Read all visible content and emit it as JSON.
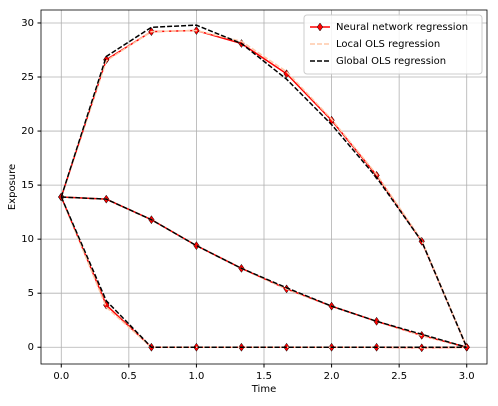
{
  "chart_data": {
    "type": "line",
    "xlabel": "Time",
    "ylabel": "Exposure",
    "x": [
      0,
      0.333,
      0.667,
      1.0,
      1.333,
      1.667,
      2.0,
      2.333,
      2.667,
      3.0,
      null,
      0,
      0.333,
      0.667,
      1.0,
      1.333,
      1.667,
      2.0,
      2.333,
      2.667,
      3.0,
      null,
      0,
      0.333,
      0.667,
      1.0,
      1.333,
      1.667,
      2.0,
      2.333,
      2.667,
      3.0
    ],
    "series": [
      {
        "name": "Neural network regression",
        "color": "#ff0000",
        "linestyle": "solid",
        "marker": "diamond",
        "values": [
          13.9,
          26.6,
          29.2,
          29.3,
          28.1,
          25.3,
          21.0,
          15.9,
          9.8,
          0,
          null,
          13.9,
          13.7,
          11.8,
          9.4,
          7.3,
          5.4,
          3.8,
          2.4,
          1.1,
          0,
          null,
          13.9,
          3.9,
          0,
          0,
          0,
          0,
          0,
          0,
          -0.05,
          0
        ]
      },
      {
        "name": "Local OLS regression",
        "color": "#ffc9a8",
        "linestyle": "dashed",
        "marker": null,
        "values": [
          13.9,
          26.5,
          29.2,
          29.3,
          28.3,
          25.5,
          21.1,
          16.0,
          9.9,
          0,
          null,
          13.9,
          13.7,
          11.8,
          9.4,
          7.3,
          5.4,
          3.8,
          2.4,
          1.1,
          0,
          null,
          13.9,
          3.7,
          0,
          0,
          0,
          0,
          0,
          0,
          -0.05,
          0
        ]
      },
      {
        "name": "Global OLS regression",
        "color": "#000000",
        "linestyle": "dashed",
        "marker": null,
        "values": [
          13.9,
          26.9,
          29.6,
          29.8,
          28.1,
          24.8,
          20.6,
          15.7,
          9.8,
          0,
          null,
          13.9,
          13.7,
          11.8,
          9.4,
          7.3,
          5.5,
          3.8,
          2.4,
          1.2,
          0,
          null,
          13.9,
          4.3,
          0,
          0,
          0,
          0,
          0,
          0,
          0,
          0
        ]
      }
    ],
    "xlim": [
      -0.15,
      3.15
    ],
    "ylim": [
      -1.55,
      31.2
    ],
    "xticks": [
      {
        "value": 0,
        "label": "0.0"
      },
      {
        "value": 0.5,
        "label": "0.5"
      },
      {
        "value": 1,
        "label": "1.0"
      },
      {
        "value": 1.5,
        "label": "1.5"
      },
      {
        "value": 2,
        "label": "2.0"
      },
      {
        "value": 2.5,
        "label": "2.5"
      },
      {
        "value": 3,
        "label": "3.0"
      }
    ],
    "yticks": [
      0,
      5,
      10,
      15,
      20,
      25,
      30
    ],
    "grid": true,
    "legend": "upper right"
  }
}
